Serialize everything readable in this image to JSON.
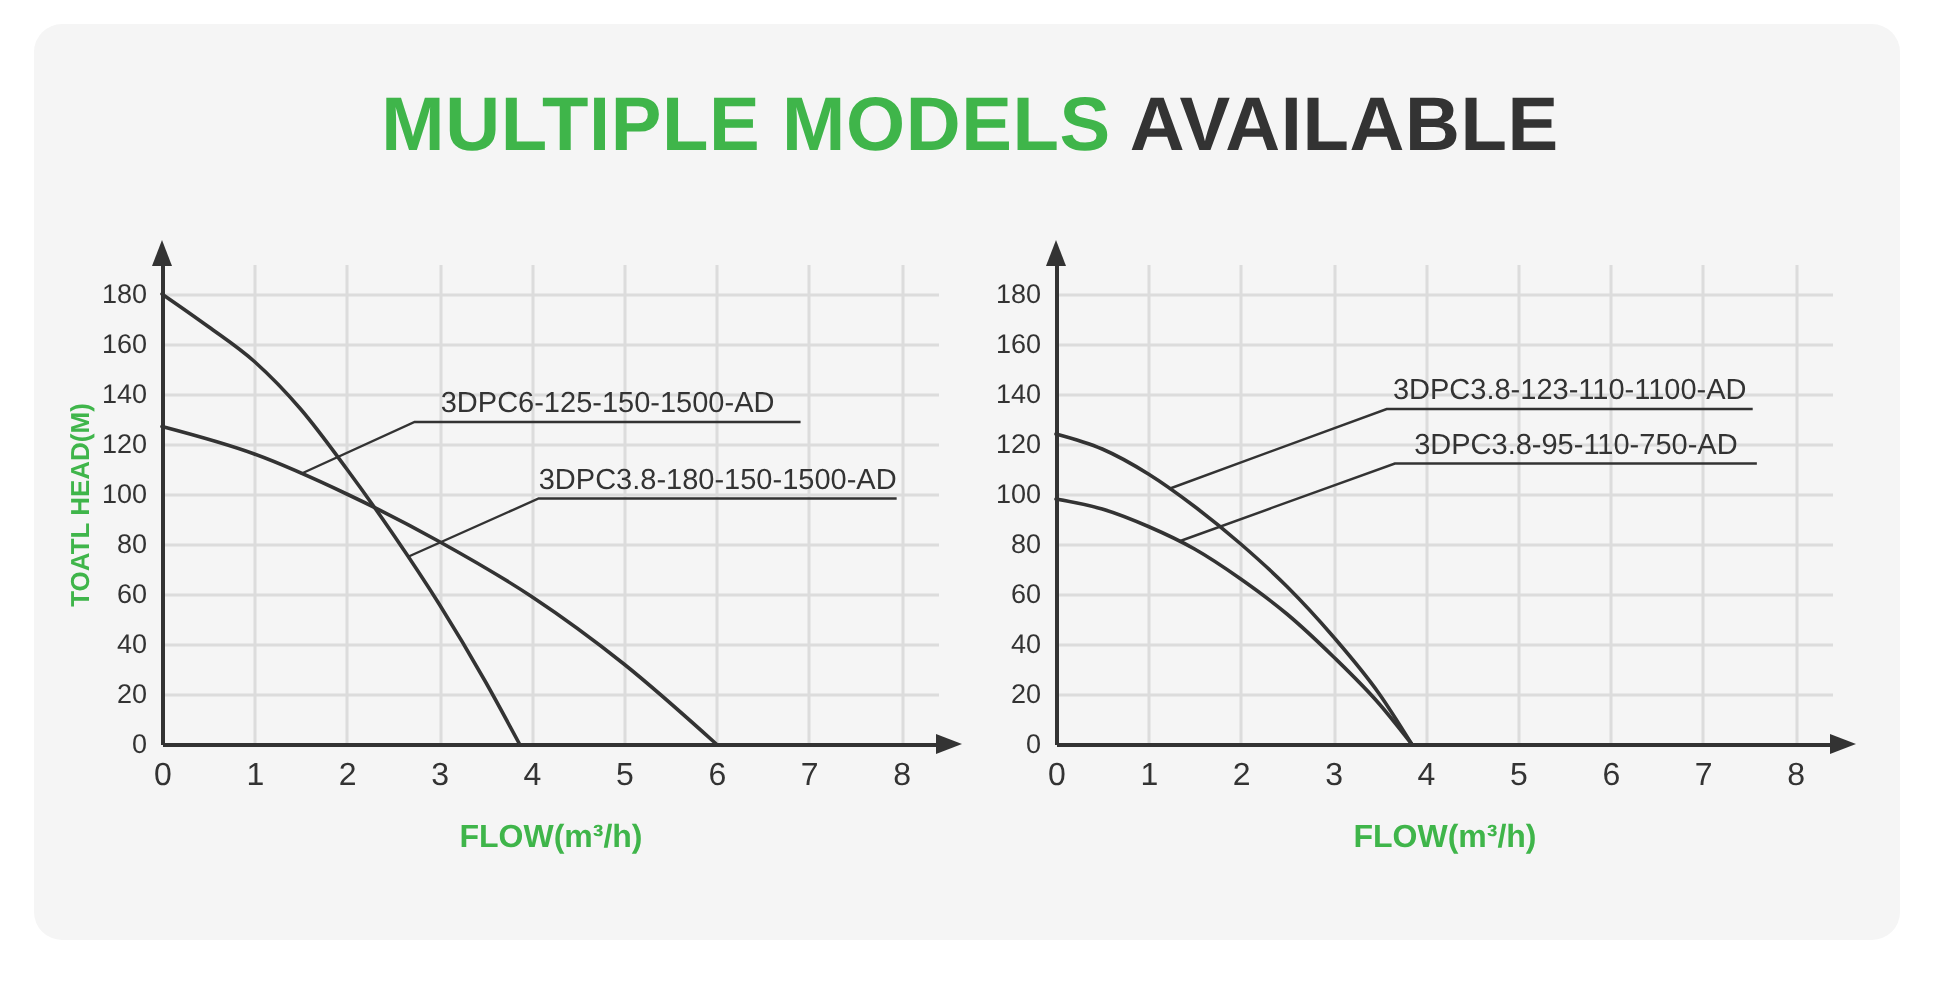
{
  "chart_data": [
    {
      "type": "line",
      "title": "MULTIPLE MODELS AVAILABLE",
      "xlabel": "FLOW(m³/h)",
      "ylabel": "TOATL HEAD(M)",
      "xlim": [
        0,
        8.4
      ],
      "ylim": [
        0,
        192
      ],
      "xticks": [
        0,
        1,
        2,
        3,
        4,
        5,
        6,
        7,
        8
      ],
      "yticks": [
        0,
        20,
        40,
        60,
        80,
        100,
        120,
        140,
        160,
        180
      ],
      "grid": true,
      "series": [
        {
          "color": "#333333",
          "x": [
            0,
            0.5,
            1,
            1.5,
            2,
            2.5,
            3,
            3.5,
            3.87
          ],
          "values": [
            180,
            167,
            153,
            134,
            110,
            84,
            56,
            25,
            0
          ]
        },
        {
          "color": "#333333",
          "x": [
            0,
            1,
            2,
            3,
            4,
            5,
            6
          ],
          "values": [
            127,
            116,
            100,
            81,
            59,
            32,
            0
          ]
        }
      ],
      "annotations": [
        {
          "text": "3DPC6-125-150-1500-AD",
          "x": 1.5,
          "y": 108
        },
        {
          "text": "3DPC3.8-180-150-1500-AD",
          "x": 2.67,
          "y": 75
        }
      ]
    },
    {
      "type": "line",
      "xlabel": "FLOW(m³/h)",
      "xlim": [
        0,
        8.4
      ],
      "ylim": [
        0,
        192
      ],
      "xticks": [
        0,
        1,
        2,
        3,
        4,
        5,
        6,
        7,
        8
      ],
      "yticks": [
        0,
        20,
        40,
        60,
        80,
        100,
        120,
        140,
        160,
        180
      ],
      "grid": true,
      "series": [
        {
          "color": "#333333",
          "x": [
            0,
            0.5,
            1,
            1.5,
            2,
            2.5,
            3,
            3.5,
            3.85
          ],
          "values": [
            124,
            118,
            108,
            95,
            80,
            63,
            43,
            20,
            0
          ]
        },
        {
          "color": "#333333",
          "x": [
            0,
            0.5,
            1,
            1.5,
            2,
            2.5,
            3,
            3.5,
            3.85
          ],
          "values": [
            98,
            94,
            87,
            78,
            66,
            52,
            35,
            16,
            0
          ]
        }
      ],
      "annotations": [
        {
          "text": "3DPC3.8-123-110-1100-AD",
          "x": 1.22,
          "y": 102
        },
        {
          "text": "3DPC3.8-95-110-750-AD",
          "x": 1.33,
          "y": 81
        }
      ]
    }
  ]
}
